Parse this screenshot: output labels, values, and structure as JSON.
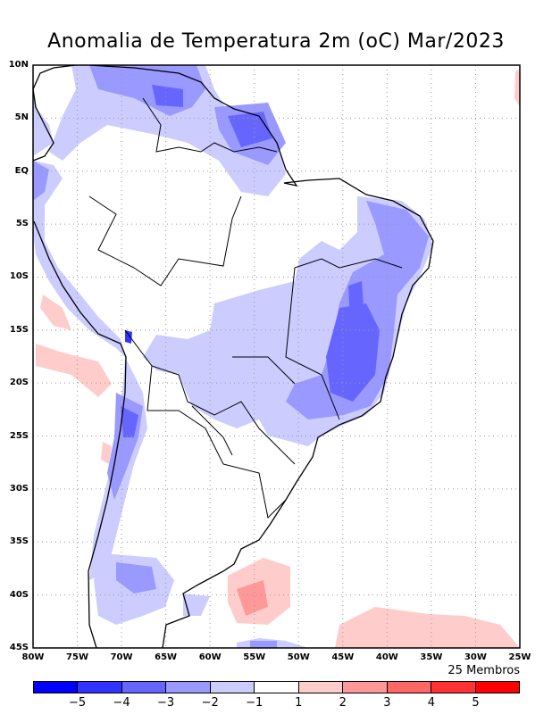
{
  "title": "Anomalia de Temperatura 2m (oC) Mar/2023",
  "lat_labels": [
    "10N",
    "5N",
    "EQ",
    "5S",
    "10S",
    "15S",
    "20S",
    "25S",
    "30S",
    "35S",
    "40S",
    "45S"
  ],
  "lon_labels": [
    "80W",
    "75W",
    "70W",
    "65W",
    "60W",
    "55W",
    "50W",
    "45W",
    "40W",
    "35W",
    "30W",
    "25W"
  ],
  "members": "25 Membros",
  "colorbar": {
    "colors": [
      "#0000ff",
      "#3333ff",
      "#6666ff",
      "#9999ff",
      "#ccccff",
      "#ffffff",
      "#ffcccc",
      "#ff9999",
      "#ff6666",
      "#ff3333",
      "#ff0000"
    ],
    "labels": [
      "−5",
      "−4",
      "−3",
      "−2",
      "−1",
      "1",
      "2",
      "3",
      "4",
      "5"
    ]
  }
}
